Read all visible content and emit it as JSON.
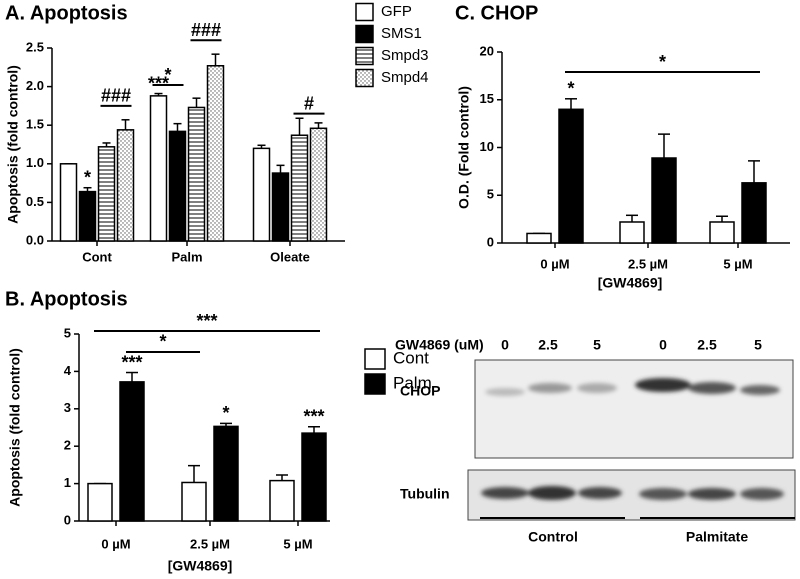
{
  "chart_data": [
    {
      "type": "bar",
      "title": "A. Apoptosis",
      "y_label": "Apoptosis (fold control)",
      "categories": [
        "Cont",
        "Palm",
        "Oleate"
      ],
      "series": [
        {
          "name": "GFP",
          "color": "#ffffff",
          "values": [
            1.0,
            1.88,
            1.2
          ],
          "errors": [
            0,
            0.03,
            0.04
          ]
        },
        {
          "name": "SMS1",
          "color": "#000000",
          "values": [
            0.64,
            1.42,
            0.88
          ],
          "errors": [
            0.05,
            0.1,
            0.1
          ]
        },
        {
          "name": "Smpd3",
          "color": "stripes",
          "values": [
            1.22,
            1.73,
            1.37
          ],
          "errors": [
            0.05,
            0.12,
            0.22
          ]
        },
        {
          "name": "Smpd4",
          "color": "dots",
          "values": [
            1.44,
            2.27,
            1.46
          ],
          "errors": [
            0.13,
            0.15,
            0.07
          ]
        }
      ],
      "ylim": [
        0,
        2.5
      ],
      "yticks": [
        {
          "value": 0,
          "label": "0.0"
        },
        0.5,
        {
          "value": 1,
          "label": "1.0"
        },
        1.5,
        {
          "value": 2,
          "label": "2.0"
        },
        2.5
      ],
      "annotations": [
        "*",
        "###",
        "***",
        "*",
        "###",
        "#"
      ]
    },
    {
      "type": "bar",
      "title": "B. Apoptosis",
      "y_label": "Apoptosis (fold control)",
      "x_label": "[GW4869]",
      "categories": [
        "0 µM",
        "2.5 µM",
        "5 µM"
      ],
      "series": [
        {
          "name": "Cont",
          "color": "#ffffff",
          "values": [
            1.0,
            1.03,
            1.08
          ],
          "errors": [
            0,
            0.45,
            0.15
          ]
        },
        {
          "name": "Palm",
          "color": "#000000",
          "values": [
            3.72,
            2.53,
            2.35
          ],
          "errors": [
            0.25,
            0.08,
            0.17
          ]
        }
      ],
      "ylim": [
        0,
        5
      ],
      "yticks": [
        0,
        1,
        2,
        3,
        4,
        5
      ],
      "annotations": [
        "***",
        "*",
        "***",
        "*",
        "***"
      ]
    },
    {
      "type": "bar",
      "title": "C. CHOP",
      "y_label": "O.D. (Fold control)",
      "x_label": "[GW4869]",
      "categories": [
        "0 µM",
        "2.5 µM",
        "5 µM"
      ],
      "series": [
        {
          "color": "#ffffff",
          "values": [
            1.0,
            2.2,
            2.2
          ],
          "errors": [
            0,
            0.7,
            0.6
          ]
        },
        {
          "color": "#000000",
          "values": [
            14.0,
            8.9,
            6.3
          ],
          "errors": [
            1.1,
            2.5,
            2.3
          ]
        }
      ],
      "ylim": [
        0,
        20
      ],
      "yticks": [
        0,
        5,
        10,
        15,
        20
      ],
      "annotations": [
        "*",
        "*"
      ]
    }
  ],
  "blot": {
    "header": "GW4869 (uM)",
    "lanes": [
      "0",
      "2.5",
      "5",
      "0",
      "2.5",
      "5"
    ],
    "rows": [
      "CHOP",
      "Tubulin"
    ],
    "groups": [
      "Control",
      "Palmitate"
    ]
  }
}
